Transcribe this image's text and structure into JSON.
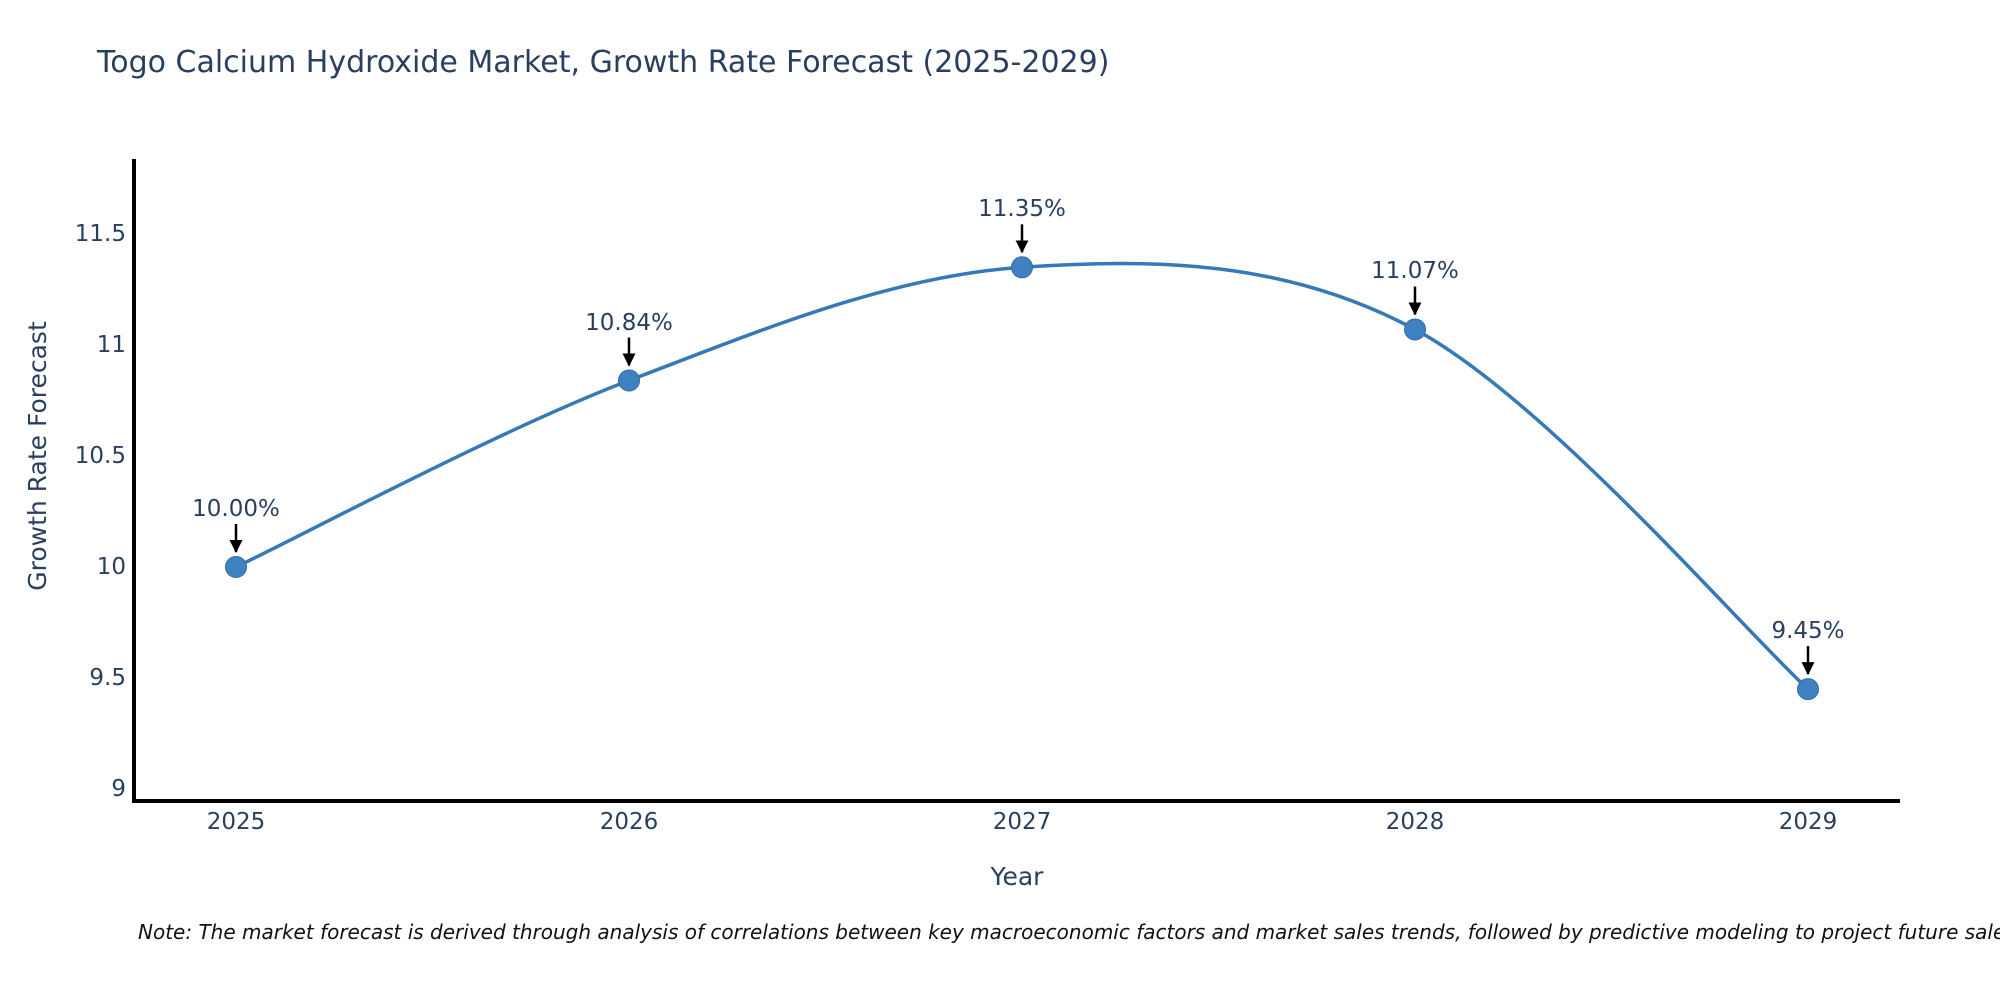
{
  "chart": {
    "title": "Togo Calcium Hydroxide Market, Growth Rate Forecast (2025-2029)",
    "xlabel": "Year",
    "ylabel": "Growth Rate Forecast",
    "note": "Note: The market forecast is derived through analysis of correlations between key macroeconomic factors and market sales trends, followed by predictive modeling to project future sales."
  },
  "chart_data": {
    "type": "line",
    "title": "Togo Calcium Hydroxide Market, Growth Rate Forecast (2025-2029)",
    "xlabel": "Year",
    "ylabel": "Growth Rate Forecast",
    "categories": [
      "2025",
      "2026",
      "2027",
      "2028",
      "2029"
    ],
    "series": [
      {
        "name": "Growth Rate Forecast",
        "values": [
          10.0,
          10.84,
          11.35,
          11.07,
          9.45
        ]
      }
    ],
    "point_labels": [
      "10.00%",
      "10.84%",
      "11.35%",
      "11.07%",
      "9.45%"
    ],
    "y_ticks": [
      9,
      9.5,
      10,
      10.5,
      11,
      11.5
    ],
    "y_tick_labels": [
      "9",
      "9.5",
      "10",
      "10.5",
      "11",
      "11.5"
    ],
    "ylim": [
      9,
      11.8
    ],
    "grid": false,
    "legend": "none",
    "line_shape": "spline",
    "annotations_have_arrows": true,
    "colors": {
      "line": "#3579b8",
      "marker": "#3f81c1",
      "marker_edge": "#2e6da4",
      "axis": "#000000",
      "text": "#2a3f5f",
      "arrow": "#000000",
      "note_text": "#111111"
    }
  }
}
